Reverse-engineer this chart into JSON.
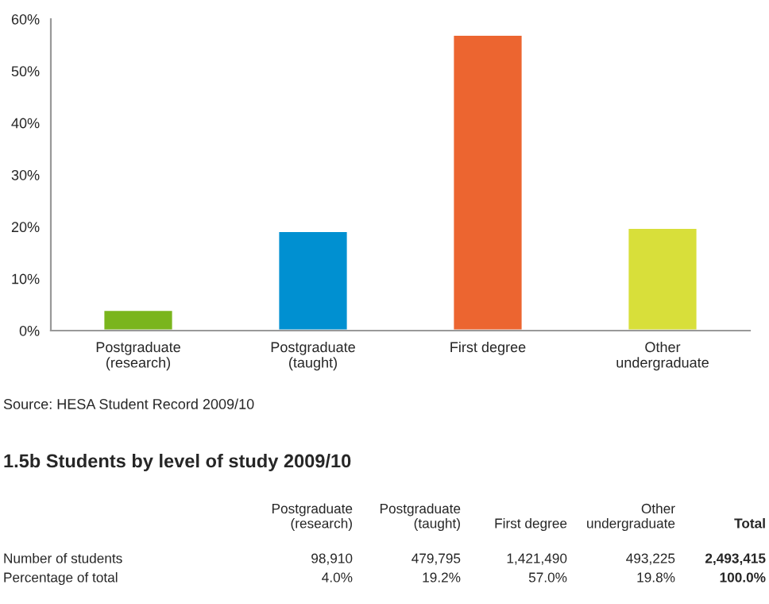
{
  "chart_data": [
    {
      "type": "bar",
      "categories": [
        "Postgraduate\n(research)",
        "Postgraduate\n(taught)",
        "First degree",
        "Other\nundergraduate"
      ],
      "values": [
        4.0,
        19.2,
        57.0,
        19.8
      ],
      "colors": [
        "#7ab51d",
        "#0090d1",
        "#ec6530",
        "#d8df3a"
      ],
      "ylim": [
        0,
        60
      ],
      "yticks": [
        {
          "value": 0,
          "label": "0%"
        },
        {
          "value": 10,
          "label": "10%"
        },
        {
          "value": 20,
          "label": "20%"
        },
        {
          "value": 30,
          "label": "30%"
        },
        {
          "value": 40,
          "label": "40%"
        },
        {
          "value": 50,
          "label": "50%"
        },
        {
          "value": 60,
          "label": "60%"
        }
      ],
      "grid": false,
      "annotations": [
        "Source: HESA Student Record 2009/10"
      ]
    },
    {
      "type": "other",
      "title": "1.5b Students by level of study 2009/10",
      "annotations": [
        "Postgraduate\n(research)",
        "Postgraduate\n(taught)",
        "First degree",
        "Other\nundergraduate",
        "Total",
        "Number of students",
        "98,910",
        "479,795",
        "1,421,490",
        "493,225",
        "2,493,415",
        "Percentage of total",
        "4.0%",
        "19.2%",
        "57.0%",
        "19.8%",
        "100.0%"
      ]
    }
  ]
}
